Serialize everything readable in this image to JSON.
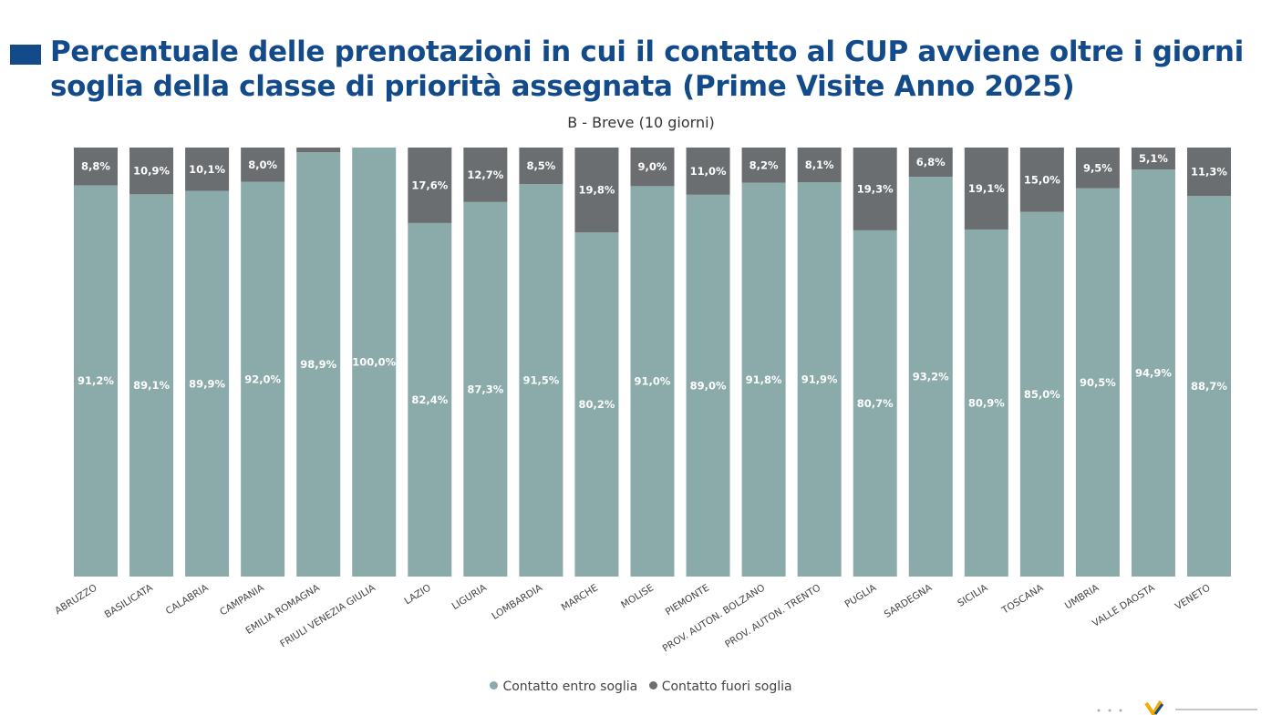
{
  "colors": {
    "title": "#124a8a",
    "entro": "#8aabaa",
    "fuori": "#6b6e70",
    "label_text": "#ffffff",
    "axis_text": "#444444"
  },
  "chart_data": {
    "type": "bar",
    "stacked": true,
    "title": "Percentuale delle prenotazioni in cui il contatto al CUP avviene oltre i giorni soglia della classe di priorità assegnata (Prime Visite Anno 2025)",
    "subtitle": "B - Breve (10 giorni)",
    "xlabel": "",
    "ylabel": "",
    "ylim": [
      0,
      100
    ],
    "grid": false,
    "legend_position": "bottom",
    "categories": [
      "ABRUZZO",
      "BASILICATA",
      "CALABRIA",
      "CAMPANIA",
      "EMILIA ROMAGNA",
      "FRIULI VENEZIA GIULIA",
      "LAZIO",
      "LIGURIA",
      "LOMBARDIA",
      "MARCHE",
      "MOLISE",
      "PIEMONTE",
      "PROV. AUTON. BOLZANO",
      "PROV. AUTON. TRENTO",
      "PUGLIA",
      "SARDEGNA",
      "SICILIA",
      "TOSCANA",
      "UMBRIA",
      "VALLE DAOSTA",
      "VENETO"
    ],
    "series": [
      {
        "name": "Contatto entro soglia",
        "color": "#8aabaa",
        "values": [
          91.2,
          89.1,
          89.9,
          92.0,
          98.9,
          100.0,
          82.4,
          87.3,
          91.5,
          80.2,
          91.0,
          89.0,
          91.8,
          91.9,
          80.7,
          93.2,
          80.9,
          85.0,
          90.5,
          94.9,
          88.7
        ],
        "labels": [
          "91,2%",
          "89,1%",
          "89,9%",
          "92,0%",
          "98,9%",
          "100,0%",
          "82,4%",
          "87,3%",
          "91,5%",
          "80,2%",
          "91,0%",
          "89,0%",
          "91,8%",
          "91,9%",
          "80,7%",
          "93,2%",
          "80,9%",
          "85,0%",
          "90,5%",
          "94,9%",
          "88,7%"
        ]
      },
      {
        "name": "Contatto fuori soglia",
        "color": "#6b6e70",
        "values": [
          8.8,
          10.9,
          10.1,
          8.0,
          1.1,
          0.0,
          17.6,
          12.7,
          8.5,
          19.8,
          9.0,
          11.0,
          8.2,
          8.1,
          19.3,
          6.8,
          19.1,
          15.0,
          9.5,
          5.1,
          11.3
        ],
        "labels": [
          "8,8%",
          "10,9%",
          "10,1%",
          "8,0%",
          "",
          "",
          "17,6%",
          "12,7%",
          "8,5%",
          "19,8%",
          "9,0%",
          "11,0%",
          "8,2%",
          "8,1%",
          "19,3%",
          "6,8%",
          "19,1%",
          "15,0%",
          "9,5%",
          "5,1%",
          "11,3%"
        ]
      }
    ]
  }
}
